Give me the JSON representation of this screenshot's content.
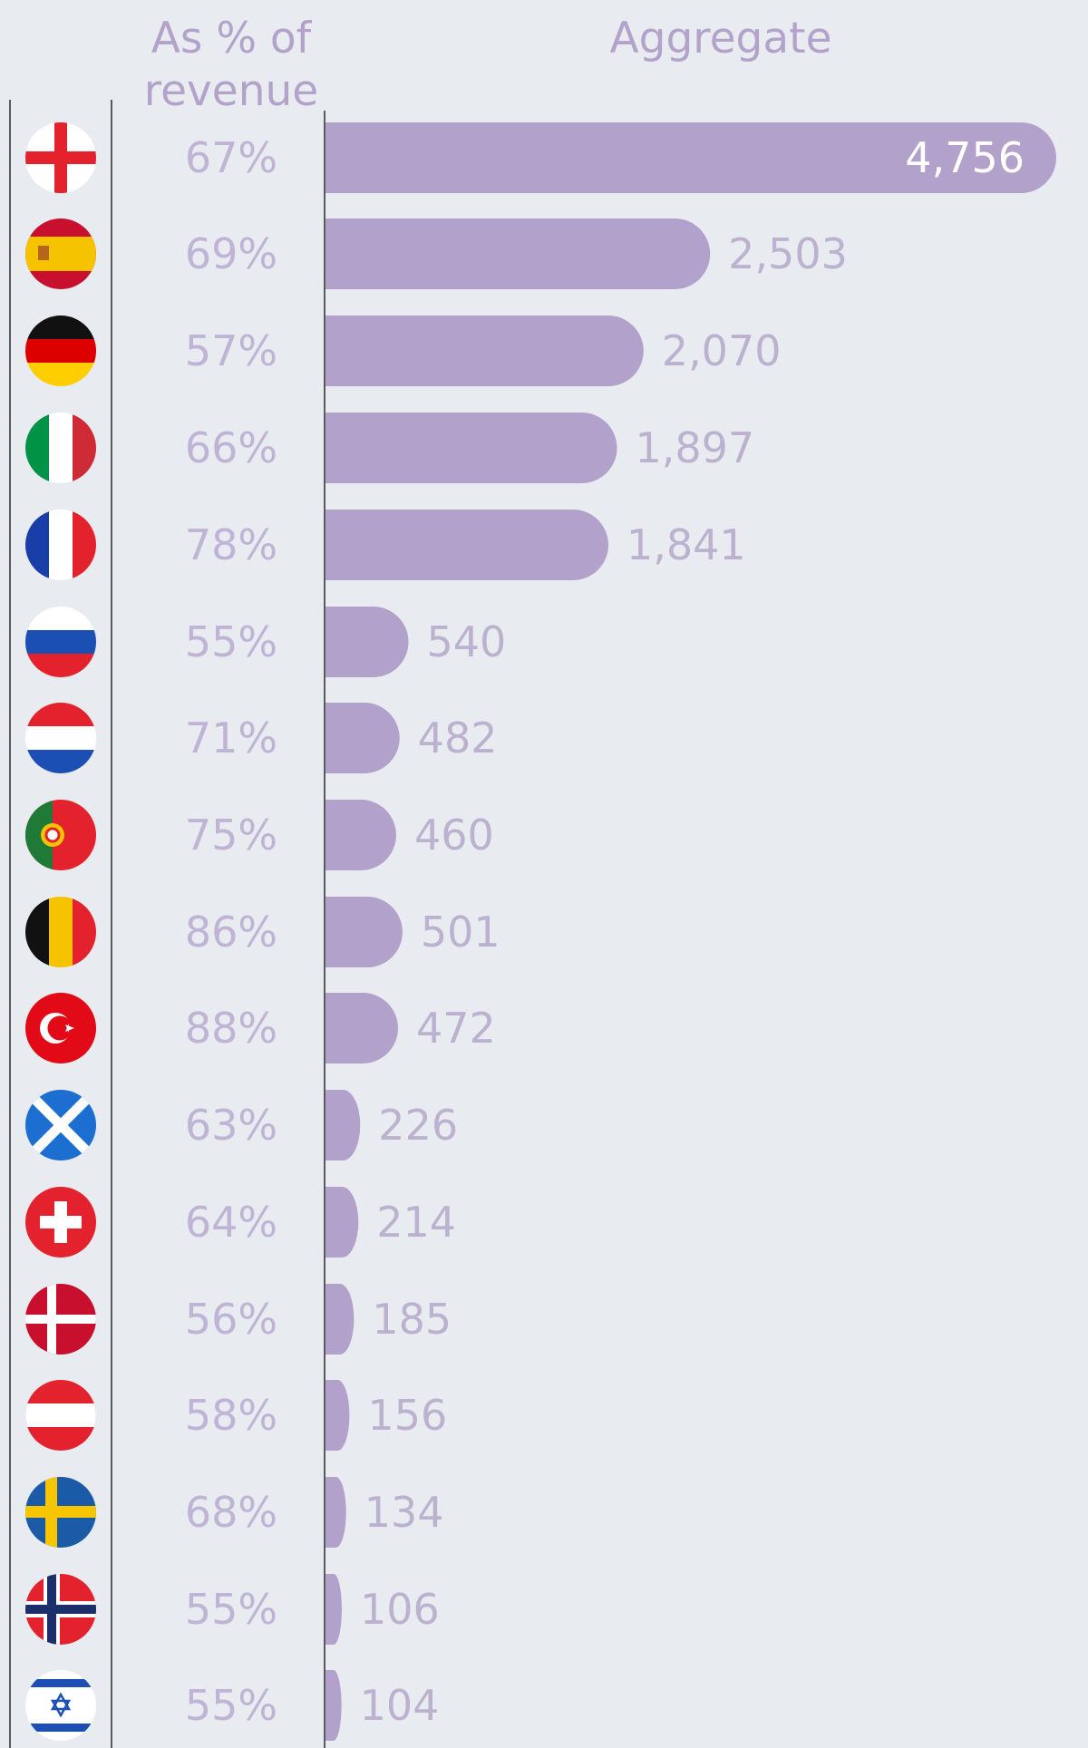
{
  "headers": {
    "pct_line1": "As % of",
    "pct_line2": "revenue",
    "aggregate": "Aggregate"
  },
  "colors": {
    "bar": "#b2a2cb",
    "header_text": "#b3a3cb",
    "pct_text": "#c0b4d6",
    "value_text": "#bcb2d0",
    "background": "#e8ebef"
  },
  "chart_data": {
    "type": "bar",
    "orientation": "horizontal",
    "categories": [
      "england-flag",
      "spain-flag",
      "germany-flag",
      "italy-flag",
      "france-flag",
      "russia-flag",
      "netherlands-flag",
      "portugal-flag",
      "belgium-flag",
      "turkey-flag",
      "scotland-flag",
      "switzerland-flag",
      "denmark-flag",
      "austria-flag",
      "sweden-flag",
      "norway-flag",
      "israel-flag"
    ],
    "series": [
      {
        "values": [
          4756,
          2503,
          2070,
          1897,
          1841,
          540,
          482,
          460,
          501,
          472,
          226,
          214,
          185,
          156,
          134,
          106,
          104
        ]
      }
    ],
    "value_labels": [
      "4,756",
      "2,503",
      "2,070",
      "1,897",
      "1,841",
      "540",
      "482",
      "460",
      "501",
      "472",
      "226",
      "214",
      "185",
      "156",
      "134",
      "106",
      "104"
    ],
    "pct_of_revenue": [
      "67%",
      "69%",
      "57%",
      "66%",
      "78%",
      "55%",
      "71%",
      "75%",
      "86%",
      "88%",
      "63%",
      "64%",
      "56%",
      "58%",
      "68%",
      "55%",
      "55%"
    ],
    "grid": false,
    "legend": "none"
  }
}
